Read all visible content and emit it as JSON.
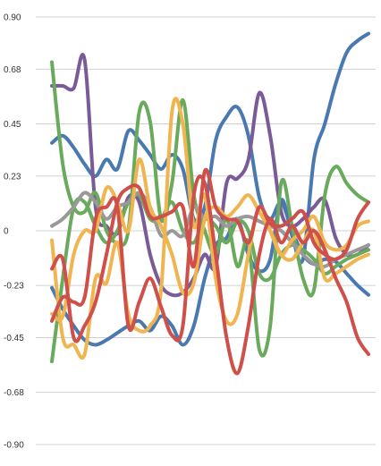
{
  "chart_data": {
    "type": "line",
    "title": "",
    "xlabel": "",
    "ylabel": "",
    "ylim": [
      -0.9,
      0.9
    ],
    "yticks": [
      0.9,
      0.68,
      0.45,
      0.23,
      0,
      -0.23,
      -0.45,
      -0.68,
      -0.9
    ],
    "ytick_labels": [
      "0.90",
      "0.68",
      "0.45",
      "0.23",
      "0",
      "-0.23",
      "-0.45",
      "-0.68",
      "-0.90"
    ],
    "grid": true,
    "legend": "none",
    "x": [
      0,
      1,
      2,
      3,
      4,
      5,
      6,
      7,
      8,
      9,
      10,
      11,
      12,
      13,
      14,
      15,
      16,
      17,
      18,
      19,
      20,
      21,
      22,
      23,
      24,
      25,
      26,
      27,
      28,
      29
    ],
    "series": [
      {
        "color": "#4a78b0",
        "values": [
          -0.24,
          -0.33,
          -0.4,
          -0.46,
          -0.48,
          -0.46,
          -0.43,
          -0.4,
          -0.38,
          -0.42,
          -0.36,
          -0.4,
          -0.48,
          -0.4,
          -0.2,
          -0.06,
          -0.03,
          0.05,
          -0.1,
          -0.17,
          -0.12,
          0.13,
          -0.02,
          -0.12,
          0.3,
          0.45,
          0.62,
          0.75,
          0.8,
          0.83
        ]
      },
      {
        "color": "#4a78b0",
        "values": [
          0.37,
          0.4,
          0.35,
          0.28,
          0.23,
          0.3,
          0.26,
          0.42,
          0.38,
          0.32,
          0.26,
          0.32,
          0.26,
          0.05,
          0.1,
          0.38,
          0.48,
          0.52,
          0.4,
          0.14,
          0.05,
          0.12,
          0.0,
          -0.1,
          -0.14,
          -0.12,
          -0.13,
          -0.18,
          -0.23,
          -0.27
        ]
      },
      {
        "color": "#7b5a98",
        "values": [
          0.61,
          0.61,
          0.6,
          0.72,
          0.1,
          0.02,
          -0.01,
          0.14,
          0.12,
          -0.1,
          -0.23,
          -0.27,
          -0.26,
          -0.2,
          -0.1,
          -0.15,
          0.2,
          0.22,
          0.3,
          0.58,
          0.4,
          0.08,
          0.02,
          0.05,
          0.1,
          0.13,
          -0.03,
          -0.1,
          -0.1,
          -0.06
        ]
      },
      {
        "color": "#6aaa5c",
        "values": [
          0.71,
          0.28,
          0.1,
          0.08,
          0.16,
          0.0,
          -0.05,
          0.0,
          0.5,
          0.46,
          0.05,
          0.2,
          0.55,
          0.15,
          0.0,
          -0.1,
          0.05,
          -0.15,
          -0.05,
          -0.5,
          -0.4,
          0.2,
          0.02,
          -0.2,
          -0.25,
          0.15,
          0.27,
          0.2,
          0.15,
          0.12
        ]
      },
      {
        "color": "#6aaa5c",
        "values": [
          -0.55,
          -0.2,
          0.1,
          0.12,
          0.02,
          -0.05,
          0.0,
          0.12,
          0.15,
          0.05,
          0.05,
          0.12,
          0.0,
          -0.05,
          0.05,
          0.02,
          -0.05,
          0.04,
          0.0,
          -0.18,
          -0.2,
          -0.1,
          -0.06,
          -0.08,
          -0.12,
          -0.18,
          -0.15,
          -0.12,
          -0.1,
          -0.08
        ]
      },
      {
        "color": "#999999",
        "values": [
          0.02,
          0.05,
          0.1,
          0.16,
          0.12,
          0.05,
          0.1,
          0.12,
          0.16,
          0.1,
          -0.02,
          0.0,
          -0.02,
          0.1,
          0.05,
          0.06,
          0.02,
          0.05,
          0.06,
          0.04,
          0.02,
          0.0,
          -0.05,
          -0.1,
          -0.14,
          -0.15,
          -0.12,
          -0.1,
          -0.08,
          -0.06
        ]
      },
      {
        "color": "#f0b450",
        "values": [
          -0.04,
          -0.45,
          -0.48,
          -0.52,
          -0.2,
          -0.22,
          -0.05,
          -0.35,
          -0.42,
          -0.4,
          -0.25,
          0.5,
          0.45,
          0.02,
          0.15,
          -0.2,
          -0.38,
          -0.35,
          -0.1,
          0.1,
          0.0,
          -0.1,
          -0.04,
          0.0,
          0.06,
          -0.05,
          -0.08,
          -0.06,
          0.02,
          0.04
        ]
      },
      {
        "color": "#f0b450",
        "values": [
          -0.35,
          -0.36,
          -0.1,
          0.0,
          0.0,
          0.18,
          0.12,
          0.0,
          0.3,
          0.1,
          0.02,
          -0.1,
          -0.26,
          -0.22,
          0.05,
          0.1,
          0.06,
          0.1,
          0.15,
          0.08,
          0.0,
          -0.1,
          -0.12,
          -0.05,
          0.0,
          -0.2,
          -0.18,
          -0.15,
          -0.12,
          -0.1
        ]
      },
      {
        "color": "#cf4f4a",
        "values": [
          -0.16,
          -0.12,
          -0.45,
          -0.4,
          -0.3,
          -0.1,
          0.12,
          0.18,
          0.18,
          0.06,
          0.06,
          0.08,
          0.1,
          -0.15,
          0.25,
          0.1,
          0.05,
          0.04,
          -0.05,
          0.1,
          0.03,
          0.02,
          0.05,
          0.08,
          -0.05,
          -0.1,
          -0.12,
          -0.08,
          0.05,
          0.12
        ]
      },
      {
        "color": "#cf4f4a",
        "values": [
          -0.38,
          -0.28,
          -0.3,
          -0.28,
          0.05,
          0.1,
          0.1,
          -0.4,
          -0.3,
          -0.2,
          -0.32,
          -0.44,
          -0.4,
          0.15,
          0.2,
          -0.1,
          -0.45,
          -0.6,
          -0.4,
          -0.1,
          0.05,
          -0.05,
          0.02,
          -0.05,
          0.0,
          -0.08,
          -0.2,
          -0.3,
          -0.45,
          -0.52
        ]
      }
    ]
  }
}
